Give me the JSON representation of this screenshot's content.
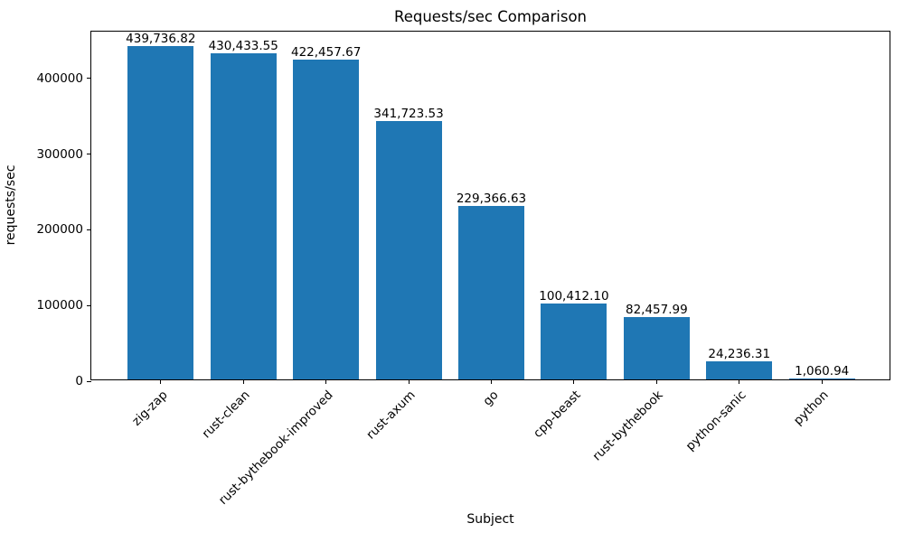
{
  "chart_data": {
    "type": "bar",
    "title": "Requests/sec Comparison",
    "xlabel": "Subject",
    "ylabel": "requests/sec",
    "categories": [
      "zig-zap",
      "rust-clean",
      "rust-bythebook-improved",
      "rust-axum",
      "go",
      "cpp-beast",
      "rust-bythebook",
      "python-sanic",
      "python"
    ],
    "values": [
      439736.82,
      430433.55,
      422457.67,
      341723.53,
      229366.63,
      100412.1,
      82457.99,
      24236.31,
      1060.94
    ],
    "value_labels": [
      "439,736.82",
      "430,433.55",
      "422,457.67",
      "341,723.53",
      "229,366.63",
      "100,412.10",
      "82,457.99",
      "24,236.31",
      "1,060.94"
    ],
    "yticks": [
      0,
      100000,
      200000,
      300000,
      400000
    ],
    "ytick_labels": [
      "0",
      "100000",
      "200000",
      "300000",
      "400000"
    ],
    "ylim": [
      0,
      461723.66
    ],
    "bar_color": "#1f77b4",
    "bar_width_ratio": 0.8,
    "grid": false,
    "legend": null
  }
}
